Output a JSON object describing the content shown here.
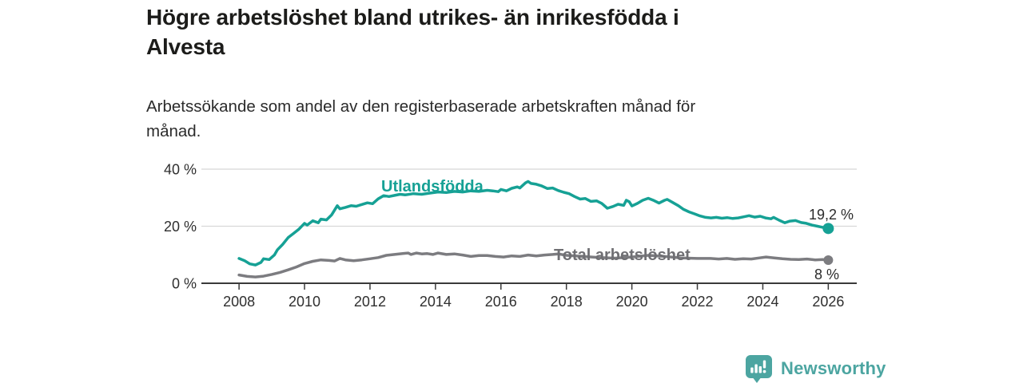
{
  "header": {
    "title": "Högre arbetslöshet bland utrikes- än inrikesfödda i Alvesta",
    "title_lines": [
      "Högre arbetslöshet bland utrikes- än inrikesfödda i",
      "Alvesta"
    ],
    "subtitle_lines": [
      "Arbetssökande som andel av den registerbaserade arbetskraften månad för",
      "månad."
    ]
  },
  "branding": {
    "logo_text": "Newsworthy",
    "logo_icon": "newsworthy-barchart-speech-bubble-icon",
    "brand_color": "#4CA5A1"
  },
  "colors": {
    "utlandsfodda": "#16A195",
    "total": "#7C7C80",
    "total_label": "#6F6F73",
    "axis": "#3A3A3A",
    "grid": "#D8D8D8",
    "tick_text": "#2F2F2F",
    "annotation_text": "#2B2B2B",
    "background": "#FFFFFF"
  },
  "chart_data": {
    "type": "line",
    "title": "Högre arbetslöshet bland utrikes- än inrikesfödda i Alvesta",
    "subtitle": "Arbetssökande som andel av den registerbaserade arbetskraften månad för månad.",
    "xlabel": "",
    "ylabel": "",
    "unit": "%",
    "xlim": [
      2006.85,
      2026.87
    ],
    "ylim": [
      0,
      42
    ],
    "grid": "horizontal",
    "legend_position": "inline-labels",
    "x_ticks": [
      2008,
      2010,
      2012,
      2014,
      2016,
      2018,
      2020,
      2022,
      2024,
      2026
    ],
    "y_ticks": [
      {
        "value": 0,
        "label": "0 %"
      },
      {
        "value": 20,
        "label": "20 %"
      },
      {
        "value": 40,
        "label": "40 %"
      }
    ],
    "series": [
      {
        "name": "Utlandsfödda",
        "color": "#16A195",
        "end_label": "19,2 %",
        "end_value": 19.2,
        "end_dot": true,
        "points": [
          [
            2008.0,
            8.7
          ],
          [
            2008.17,
            7.9
          ],
          [
            2008.33,
            6.8
          ],
          [
            2008.5,
            6.4
          ],
          [
            2008.67,
            7.3
          ],
          [
            2008.75,
            8.6
          ],
          [
            2008.92,
            8.3
          ],
          [
            2009.08,
            9.9
          ],
          [
            2009.17,
            11.7
          ],
          [
            2009.33,
            13.6
          ],
          [
            2009.5,
            16.0
          ],
          [
            2009.67,
            17.5
          ],
          [
            2009.83,
            19.0
          ],
          [
            2010.0,
            21.0
          ],
          [
            2010.08,
            20.4
          ],
          [
            2010.25,
            21.9
          ],
          [
            2010.42,
            21.2
          ],
          [
            2010.5,
            22.5
          ],
          [
            2010.67,
            22.2
          ],
          [
            2010.83,
            24.0
          ],
          [
            2011.0,
            27.2
          ],
          [
            2011.08,
            26.1
          ],
          [
            2011.25,
            26.6
          ],
          [
            2011.42,
            27.2
          ],
          [
            2011.58,
            27.0
          ],
          [
            2011.75,
            27.6
          ],
          [
            2011.92,
            28.2
          ],
          [
            2012.08,
            27.9
          ],
          [
            2012.25,
            29.6
          ],
          [
            2012.42,
            30.7
          ],
          [
            2012.58,
            30.4
          ],
          [
            2012.75,
            30.8
          ],
          [
            2012.92,
            31.2
          ],
          [
            2013.08,
            31.0
          ],
          [
            2013.33,
            31.4
          ],
          [
            2013.58,
            31.2
          ],
          [
            2013.83,
            31.6
          ],
          [
            2014.08,
            32.0
          ],
          [
            2014.33,
            31.8
          ],
          [
            2014.58,
            32.2
          ],
          [
            2014.83,
            32.0
          ],
          [
            2015.08,
            32.4
          ],
          [
            2015.33,
            32.2
          ],
          [
            2015.58,
            32.6
          ],
          [
            2015.75,
            32.4
          ],
          [
            2015.92,
            32.1
          ],
          [
            2016.0,
            32.9
          ],
          [
            2016.17,
            32.4
          ],
          [
            2016.33,
            33.3
          ],
          [
            2016.5,
            33.8
          ],
          [
            2016.58,
            33.4
          ],
          [
            2016.75,
            35.2
          ],
          [
            2016.83,
            35.7
          ],
          [
            2016.92,
            35.0
          ],
          [
            2017.08,
            34.7
          ],
          [
            2017.25,
            34.1
          ],
          [
            2017.42,
            33.2
          ],
          [
            2017.58,
            33.4
          ],
          [
            2017.75,
            32.5
          ],
          [
            2017.92,
            31.9
          ],
          [
            2018.08,
            31.4
          ],
          [
            2018.25,
            30.4
          ],
          [
            2018.42,
            29.5
          ],
          [
            2018.58,
            29.7
          ],
          [
            2018.75,
            28.7
          ],
          [
            2018.92,
            28.9
          ],
          [
            2019.08,
            28.0
          ],
          [
            2019.25,
            26.3
          ],
          [
            2019.42,
            26.9
          ],
          [
            2019.58,
            27.7
          ],
          [
            2019.75,
            27.3
          ],
          [
            2019.83,
            29.1
          ],
          [
            2019.92,
            28.6
          ],
          [
            2020.0,
            27.1
          ],
          [
            2020.17,
            28.0
          ],
          [
            2020.33,
            29.1
          ],
          [
            2020.5,
            29.8
          ],
          [
            2020.67,
            29.0
          ],
          [
            2020.83,
            28.1
          ],
          [
            2021.0,
            29.1
          ],
          [
            2021.08,
            29.4
          ],
          [
            2021.25,
            28.3
          ],
          [
            2021.42,
            27.2
          ],
          [
            2021.58,
            25.9
          ],
          [
            2021.75,
            25.0
          ],
          [
            2021.92,
            24.3
          ],
          [
            2022.08,
            23.6
          ],
          [
            2022.25,
            23.1
          ],
          [
            2022.42,
            22.9
          ],
          [
            2022.58,
            23.1
          ],
          [
            2022.75,
            22.8
          ],
          [
            2022.92,
            23.0
          ],
          [
            2023.08,
            22.7
          ],
          [
            2023.25,
            22.9
          ],
          [
            2023.42,
            23.3
          ],
          [
            2023.58,
            23.7
          ],
          [
            2023.75,
            23.2
          ],
          [
            2023.92,
            23.5
          ],
          [
            2024.08,
            22.9
          ],
          [
            2024.25,
            22.6
          ],
          [
            2024.33,
            23.1
          ],
          [
            2024.5,
            22.1
          ],
          [
            2024.67,
            21.2
          ],
          [
            2024.83,
            21.8
          ],
          [
            2025.0,
            22.0
          ],
          [
            2025.17,
            21.3
          ],
          [
            2025.33,
            21.0
          ],
          [
            2025.5,
            20.4
          ],
          [
            2025.67,
            20.0
          ],
          [
            2025.83,
            19.6
          ],
          [
            2026.0,
            19.2
          ]
        ]
      },
      {
        "name": "Total arbetslöshet",
        "color": "#7C7C80",
        "end_label": "8 %",
        "end_value": 8,
        "end_dot": true,
        "points": [
          [
            2008.0,
            2.9
          ],
          [
            2008.25,
            2.4
          ],
          [
            2008.5,
            2.2
          ],
          [
            2008.75,
            2.5
          ],
          [
            2009.0,
            3.1
          ],
          [
            2009.25,
            3.8
          ],
          [
            2009.5,
            4.7
          ],
          [
            2009.75,
            5.7
          ],
          [
            2010.0,
            6.9
          ],
          [
            2010.25,
            7.7
          ],
          [
            2010.5,
            8.2
          ],
          [
            2010.75,
            8.0
          ],
          [
            2010.92,
            7.8
          ],
          [
            2011.08,
            8.7
          ],
          [
            2011.25,
            8.2
          ],
          [
            2011.5,
            7.9
          ],
          [
            2011.75,
            8.2
          ],
          [
            2012.0,
            8.6
          ],
          [
            2012.25,
            9.0
          ],
          [
            2012.5,
            9.8
          ],
          [
            2012.75,
            10.1
          ],
          [
            2013.0,
            10.4
          ],
          [
            2013.17,
            10.6
          ],
          [
            2013.25,
            10.1
          ],
          [
            2013.42,
            10.6
          ],
          [
            2013.58,
            10.3
          ],
          [
            2013.75,
            10.4
          ],
          [
            2013.92,
            10.1
          ],
          [
            2014.08,
            10.6
          ],
          [
            2014.33,
            10.1
          ],
          [
            2014.58,
            10.3
          ],
          [
            2014.83,
            9.9
          ],
          [
            2015.08,
            9.4
          ],
          [
            2015.33,
            9.7
          ],
          [
            2015.58,
            9.7
          ],
          [
            2015.83,
            9.4
          ],
          [
            2016.08,
            9.2
          ],
          [
            2016.33,
            9.6
          ],
          [
            2016.58,
            9.4
          ],
          [
            2016.83,
            9.9
          ],
          [
            2017.08,
            9.6
          ],
          [
            2017.33,
            9.9
          ],
          [
            2017.58,
            10.1
          ],
          [
            2017.75,
            10.3
          ],
          [
            2018.0,
            9.8
          ],
          [
            2018.5,
            9.4
          ],
          [
            2019.0,
            9.0
          ],
          [
            2019.5,
            8.8
          ],
          [
            2020.0,
            9.2
          ],
          [
            2020.5,
            9.8
          ],
          [
            2021.0,
            9.4
          ],
          [
            2021.5,
            8.9
          ],
          [
            2022.0,
            8.7
          ],
          [
            2022.4,
            8.7
          ],
          [
            2022.65,
            8.5
          ],
          [
            2022.9,
            8.7
          ],
          [
            2023.15,
            8.4
          ],
          [
            2023.4,
            8.6
          ],
          [
            2023.65,
            8.5
          ],
          [
            2023.9,
            8.9
          ],
          [
            2024.1,
            9.2
          ],
          [
            2024.35,
            8.9
          ],
          [
            2024.6,
            8.6
          ],
          [
            2024.85,
            8.4
          ],
          [
            2025.1,
            8.3
          ],
          [
            2025.35,
            8.5
          ],
          [
            2025.6,
            8.2
          ],
          [
            2025.83,
            8.3
          ],
          [
            2026.0,
            8.1
          ]
        ]
      }
    ]
  }
}
